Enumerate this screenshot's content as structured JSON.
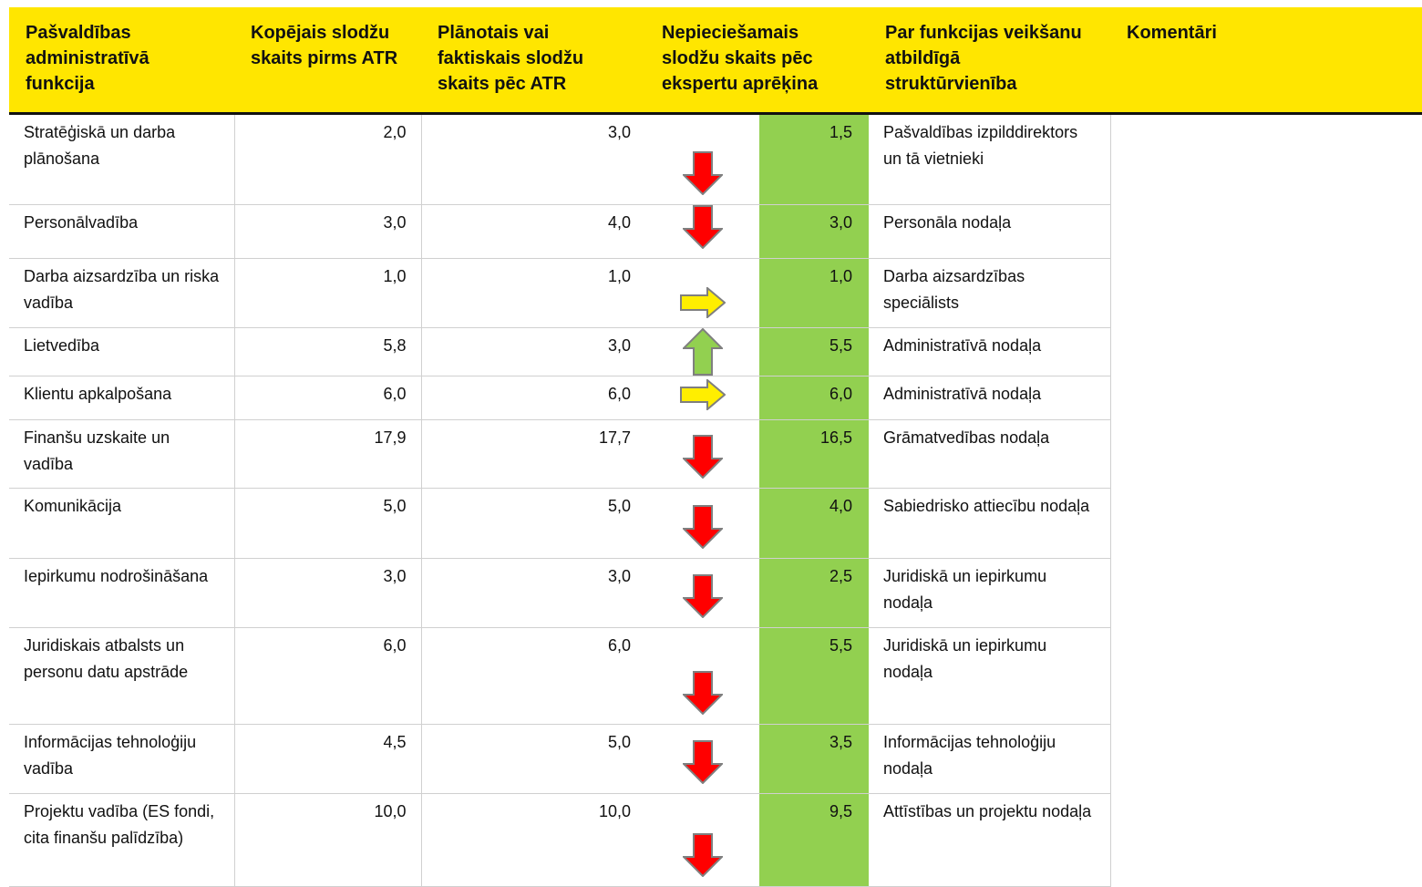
{
  "table": {
    "header": [
      "Pašvaldības administratīvā funkcija",
      "Kopējais slodžu skaits pirms ATR",
      "Plānotais vai faktiskais slodžu skaits pēc ATR",
      "Nepieciešamais slodžu skaits pēc ekspertu aprēķina",
      "Par funkcijas veikšanu atbildīgā struktūrvienība",
      "Komentāri"
    ],
    "rows": [
      [
        "Stratēģiskā un darba plānošana",
        "2,0",
        "3,0",
        "1,5",
        "Pašvaldības izpilddirektors un tā vietnieki"
      ],
      [
        "Personālvadība",
        "3,0",
        "4,0",
        "3,0",
        "Personāla nodaļa"
      ],
      [
        "Darba aizsardzība un riska vadība",
        "1,0",
        "1,0",
        "1,0",
        "Darba aizsardzības speciālists"
      ],
      [
        "Lietvedība",
        "5,8",
        "3,0",
        "5,5",
        "Administratīvā nodaļa"
      ],
      [
        "Klientu apkalpošana",
        "6,0",
        "6,0",
        "6,0",
        "Administratīvā nodaļa"
      ],
      [
        "Finanšu uzskaite un vadība",
        "17,9",
        "17,7",
        "16,5",
        "Grāmatvedības nodaļa"
      ],
      [
        "Komunikācija",
        "5,0",
        "5,0",
        "4,0",
        "Sabiedrisko attiecību nodaļa"
      ],
      [
        "Iepirkumu nodrošināšana",
        "3,0",
        "3,0",
        "2,5",
        "Juridiskā un iepirkumu nodaļa"
      ],
      [
        "Juridiskais atbalsts un personu datu apstrāde",
        "6,0",
        "6,0",
        "5,5",
        "Juridiskā un iepirkumu nodaļa"
      ],
      [
        "Informācijas tehnoloģiju vadība",
        "4,5",
        "5,0",
        "3,5",
        "Informācijas tehnoloģiju nodaļa"
      ],
      [
        "Projektu vadība (ES fondi, cita finanšu palīdzība)",
        "10,0",
        "10,0",
        "9,5",
        "Attīstības un projektu nodaļa"
      ]
    ]
  }
}
